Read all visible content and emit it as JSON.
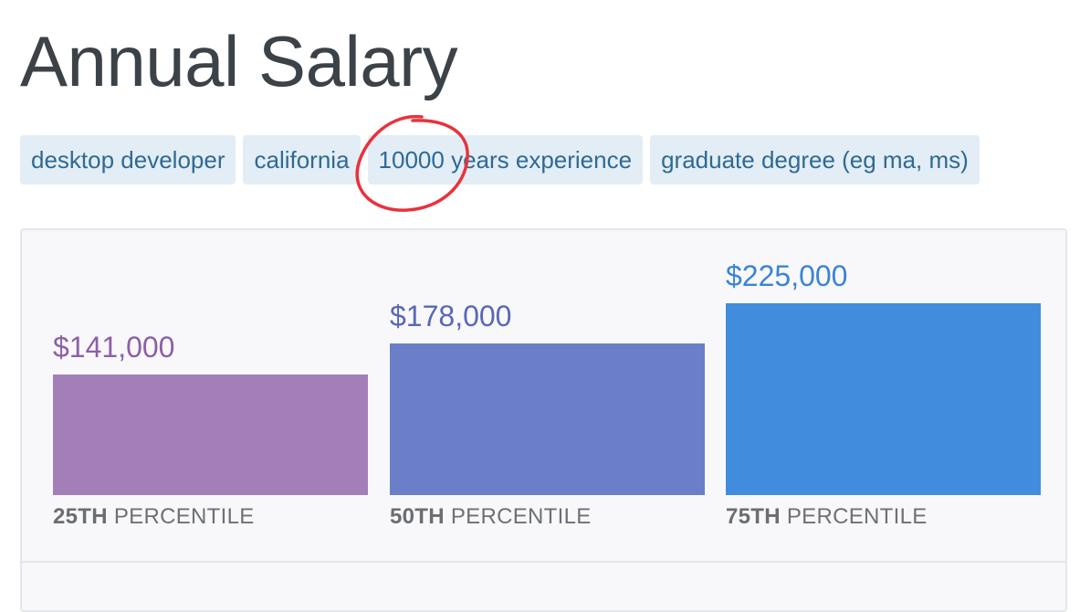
{
  "page": {
    "title": "Annual Salary"
  },
  "filters": [
    {
      "label": "desktop developer"
    },
    {
      "label": "california"
    },
    {
      "label": "10000 years experience"
    },
    {
      "label": "graduate degree (eg ma, ms)"
    }
  ],
  "chart_data": {
    "type": "bar",
    "categories": [
      "25TH PERCENTILE",
      "50TH PERCENTILE",
      "75TH PERCENTILE"
    ],
    "values": [
      141000,
      178000,
      225000
    ],
    "value_labels": [
      "$141,000",
      "$178,000",
      "$225,000"
    ],
    "category_parts": [
      {
        "strong": "25TH",
        "rest": " PERCENTILE"
      },
      {
        "strong": "50TH",
        "rest": " PERCENTILE"
      },
      {
        "strong": "75TH",
        "rest": " PERCENTILE"
      }
    ],
    "colors": [
      "#a37fb8",
      "#6a7fc7",
      "#428cdd"
    ],
    "label_colors": [
      "#8e5fa6",
      "#5868b8",
      "#3a84d6"
    ],
    "ylim": [
      0,
      225000
    ]
  }
}
